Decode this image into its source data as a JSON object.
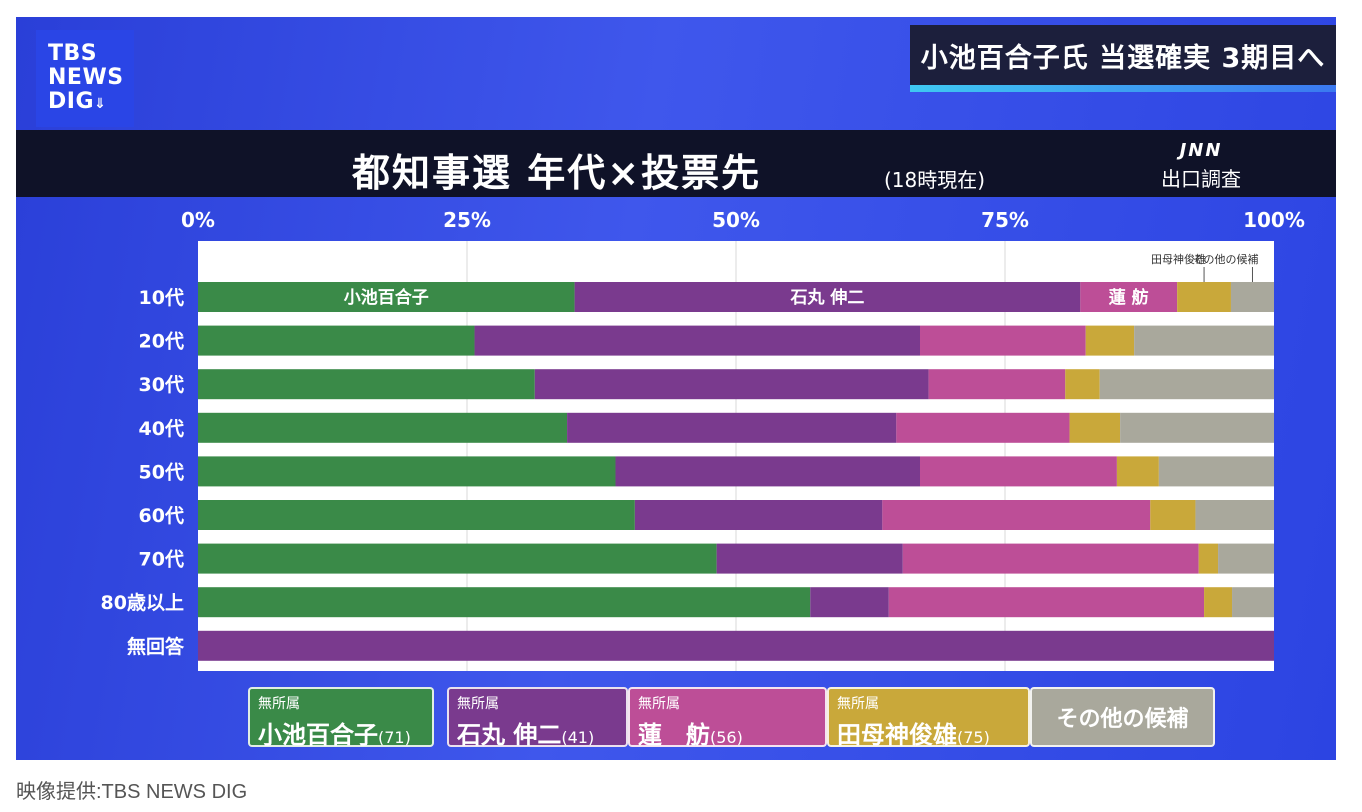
{
  "logo": {
    "line1": "TBS",
    "line2": "NEWS",
    "line3": "DIG"
  },
  "headline": "小池百合子氏 当選確実 3期目へ",
  "title": "都知事選  年代×投票先",
  "subtitle": "(18時現在)",
  "source_logo": "JNN",
  "source_label": "出口調査",
  "credit": "映像提供:TBS NEWS DIG",
  "colors": {
    "koike": "#3a8a48",
    "ishimaru": "#7a3a8e",
    "renho": "#bd4e97",
    "tamogami": "#c9a83a",
    "other": "#a9a89c"
  },
  "legend": [
    {
      "party": "無所属",
      "name": "小池百合子",
      "age": "(71)",
      "color_key": "koike"
    },
    {
      "party": "無所属",
      "name": "石丸 伸二",
      "age": "(41)",
      "color_key": "ishimaru"
    },
    {
      "party": "無所属",
      "name": "蓮　舫",
      "age": "(56)",
      "color_key": "renho"
    },
    {
      "party": "無所属",
      "name": "田母神俊雄",
      "age": "(75)",
      "color_key": "tamogami"
    },
    {
      "party": "",
      "name": "その他の候補",
      "age": "",
      "color_key": "other"
    }
  ],
  "chart_data": {
    "type": "bar",
    "orientation": "horizontal",
    "stacked": true,
    "xlim": [
      0,
      100
    ],
    "x_ticks": [
      "0%",
      "25%",
      "50%",
      "75%",
      "100%"
    ],
    "categories": [
      "10代",
      "20代",
      "30代",
      "40代",
      "50代",
      "60代",
      "70代",
      "80歳以上",
      "無回答"
    ],
    "series": [
      {
        "name": "小池百合子",
        "values": [
          35,
          25.7,
          31.3,
          34.3,
          38.8,
          40.6,
          48.2,
          56.9,
          0
        ]
      },
      {
        "name": "石丸 伸二",
        "values": [
          47,
          41.4,
          36.6,
          30.6,
          28.3,
          23,
          17.3,
          7.3,
          100
        ]
      },
      {
        "name": "蓮　舫",
        "values": [
          9,
          15.4,
          12.7,
          16.1,
          18.3,
          24.9,
          27.5,
          29.3,
          0
        ]
      },
      {
        "name": "田母神俊雄",
        "values": [
          5,
          4.5,
          3.2,
          4.7,
          3.9,
          4.2,
          1.8,
          2.6,
          0
        ]
      },
      {
        "name": "その他の候補",
        "values": [
          4,
          13,
          16.2,
          14.3,
          10.7,
          7.3,
          5.2,
          3.9,
          0
        ]
      }
    ],
    "bar_labels_10s": [
      "小池百合子",
      "石丸 伸二",
      "蓮 舫"
    ],
    "annotations": [
      "田母神俊雄",
      "その他の候補"
    ]
  }
}
